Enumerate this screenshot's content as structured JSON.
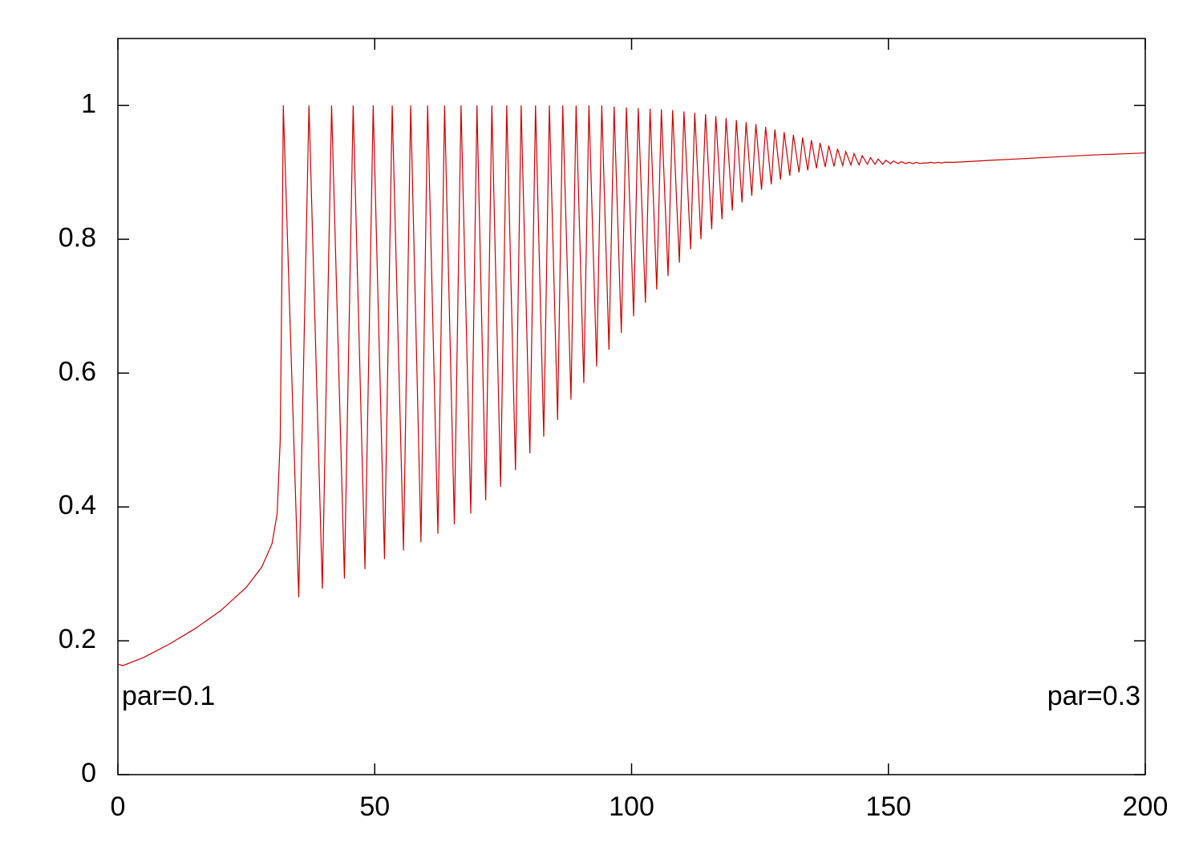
{
  "chart_data": {
    "type": "line",
    "annotations": [
      "par=0.1",
      "par=0.3"
    ],
    "xlim": [
      0,
      200
    ],
    "xticks": [
      0,
      50,
      100,
      150,
      200
    ],
    "ylim": [
      0,
      1.1
    ],
    "yticks": [
      0,
      0.2,
      0.4,
      0.6,
      0.8,
      1
    ],
    "series": [
      {
        "color": "#cc0000",
        "x": [
          0,
          1,
          5,
          10,
          15,
          20,
          25,
          28,
          30,
          31,
          31.6,
          32.0,
          32.2,
          35.2,
          37.2,
          39.8,
          41.6,
          44.1,
          45.8,
          48.1,
          49.7,
          51.9,
          53.4,
          55.6,
          57.0,
          59.0,
          60.3,
          62.3,
          63.6,
          65.5,
          66.8,
          68.7,
          69.9,
          71.6,
          72.8,
          74.5,
          75.7,
          77.4,
          78.5,
          80.2,
          81.3,
          82.9,
          84.0,
          85.6,
          86.6,
          88.2,
          89.2,
          90.7,
          91.7,
          93.2,
          94.2,
          95.6,
          96.6,
          98.0,
          99.0,
          100.4,
          101.3,
          102.7,
          103.6,
          104.9,
          105.8,
          107.1,
          108.0,
          109.3,
          110.2,
          111.5,
          112.3,
          113.5,
          114.4,
          115.6,
          116.4,
          117.6,
          118.4,
          119.6,
          120.4,
          121.5,
          122.3,
          123.4,
          124.2,
          125.3,
          126.1,
          127.2,
          127.9,
          129.0,
          129.7,
          130.8,
          131.5,
          132.6,
          133.3,
          134.3,
          135.0,
          136.0,
          136.7,
          137.7,
          138.4,
          139.4,
          140.1,
          141.1,
          141.7,
          142.7,
          143.3,
          144.3,
          144.9,
          145.9,
          146.5,
          147.4,
          148.0,
          148.9,
          149.5,
          150.4,
          151.0,
          151.9,
          152.5,
          153.4,
          154.0,
          154.8,
          155.4,
          156.2,
          156.8,
          157.6,
          158.2,
          159.0,
          159.6,
          160.4,
          161.0,
          163,
          170,
          180,
          190,
          200
        ],
        "values": [
          0.165,
          0.163,
          0.175,
          0.195,
          0.218,
          0.245,
          0.28,
          0.31,
          0.345,
          0.39,
          0.5,
          0.8,
          1,
          0.265,
          1,
          0.278,
          1,
          0.293,
          1,
          0.307,
          1,
          0.322,
          1,
          0.335,
          1,
          0.347,
          1,
          0.36,
          1,
          0.374,
          1,
          0.39,
          1,
          0.41,
          1,
          0.43,
          1,
          0.455,
          1,
          0.48,
          1,
          0.505,
          1,
          0.53,
          1,
          0.56,
          1,
          0.585,
          1,
          0.61,
          1,
          0.635,
          0.998,
          0.66,
          0.997,
          0.685,
          0.996,
          0.705,
          0.995,
          0.725,
          0.994,
          0.745,
          0.993,
          0.765,
          0.991,
          0.785,
          0.989,
          0.8,
          0.987,
          0.815,
          0.984,
          0.83,
          0.981,
          0.843,
          0.978,
          0.855,
          0.975,
          0.865,
          0.972,
          0.874,
          0.968,
          0.882,
          0.964,
          0.889,
          0.96,
          0.895,
          0.956,
          0.9,
          0.952,
          0.903,
          0.948,
          0.906,
          0.944,
          0.908,
          0.94,
          0.909,
          0.935,
          0.91,
          0.931,
          0.911,
          0.928,
          0.911,
          0.925,
          0.912,
          0.922,
          0.912,
          0.92,
          0.912,
          0.918,
          0.913,
          0.917,
          0.913,
          0.916,
          0.913,
          0.915,
          0.913,
          0.915,
          0.913,
          0.914,
          0.914,
          0.915,
          0.914,
          0.915,
          0.914,
          0.915,
          0.915,
          0.918,
          0.922,
          0.926,
          0.929
        ]
      }
    ]
  }
}
